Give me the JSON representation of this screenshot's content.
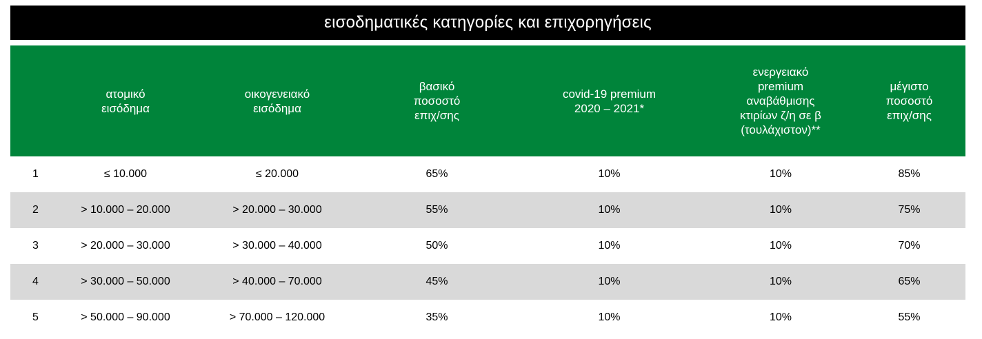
{
  "title": "εισοδηματικές κατηγορίες και επιχορηγήσεις",
  "colors": {
    "title_bg": "#000000",
    "header_bg": "#00843a",
    "shaded_row": "#d9d9d9"
  },
  "chart_data": {
    "type": "table",
    "title": "εισοδηματικές κατηγορίες και επιχορηγήσεις",
    "columns": [
      "",
      "ατομικό\nεισόδημα",
      "οικογενειακό\nεισόδημα",
      "βασικό\nποσοστό\nεπιχ/σης",
      "covid-19 premium\n2020 – 2021*",
      "ενεργειακό\npremium\nαναβάθμισης\nκτιρίων ζ/η σε β\n(τουλάχιστον)**",
      "μέγιστο\nποσοστό\nεπιχ/σης"
    ],
    "rows": [
      [
        "1",
        "≤ 10.000",
        "≤ 20.000",
        "65%",
        "10%",
        "10%",
        "85%"
      ],
      [
        "2",
        "> 10.000 – 20.000",
        "> 20.000 – 30.000",
        "55%",
        "10%",
        "10%",
        "75%"
      ],
      [
        "3",
        "> 20.000 – 30.000",
        "> 30.000 – 40.000",
        "50%",
        "10%",
        "10%",
        "70%"
      ],
      [
        "4",
        "> 30.000 – 50.000",
        "> 40.000 – 70.000",
        "45%",
        "10%",
        "10%",
        "65%"
      ],
      [
        "5",
        "> 50.000 – 90.000",
        "> 70.000 – 120.000",
        "35%",
        "10%",
        "10%",
        "55%"
      ]
    ]
  }
}
